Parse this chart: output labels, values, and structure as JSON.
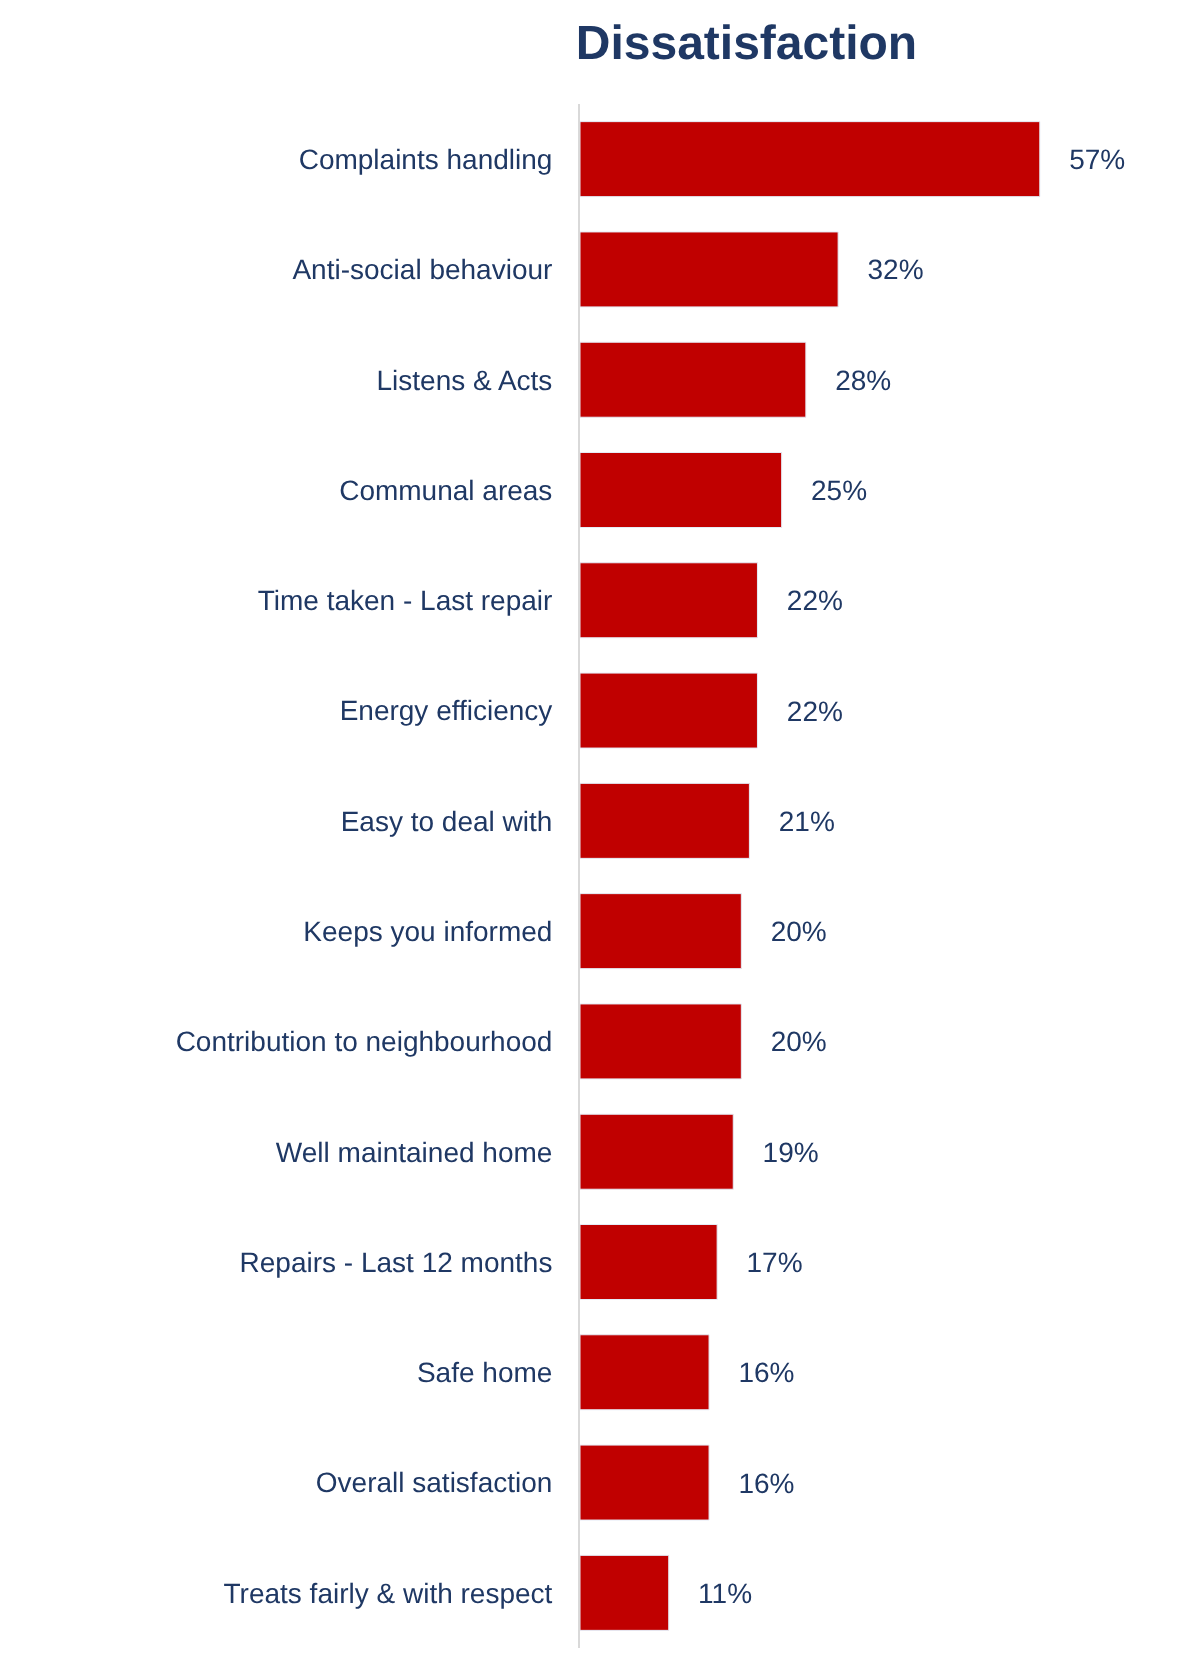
{
  "chart_data": {
    "type": "bar",
    "orientation": "horizontal",
    "title": "Dissatisfaction",
    "categories": [
      "Complaints handling",
      "Anti-social behaviour",
      "Listens & Acts",
      "Communal areas",
      "Time taken - Last repair",
      "Energy efficiency",
      "Easy to deal with",
      "Keeps you informed",
      "Contribution to neighbourhood",
      "Well maintained home",
      "Repairs - Last 12 months",
      "Safe home",
      "Overall satisfaction",
      "Treats fairly & with respect"
    ],
    "values": [
      57,
      32,
      28,
      25,
      22,
      22,
      21,
      20,
      20,
      19,
      17,
      16,
      16,
      11
    ],
    "value_labels": [
      "57%",
      "32%",
      "28%",
      "25%",
      "22%",
      "22%",
      "21%",
      "20%",
      "20%",
      "19%",
      "17%",
      "16%",
      "16%",
      "11%"
    ],
    "color": "#c00000",
    "tick_labels": "y"
  }
}
